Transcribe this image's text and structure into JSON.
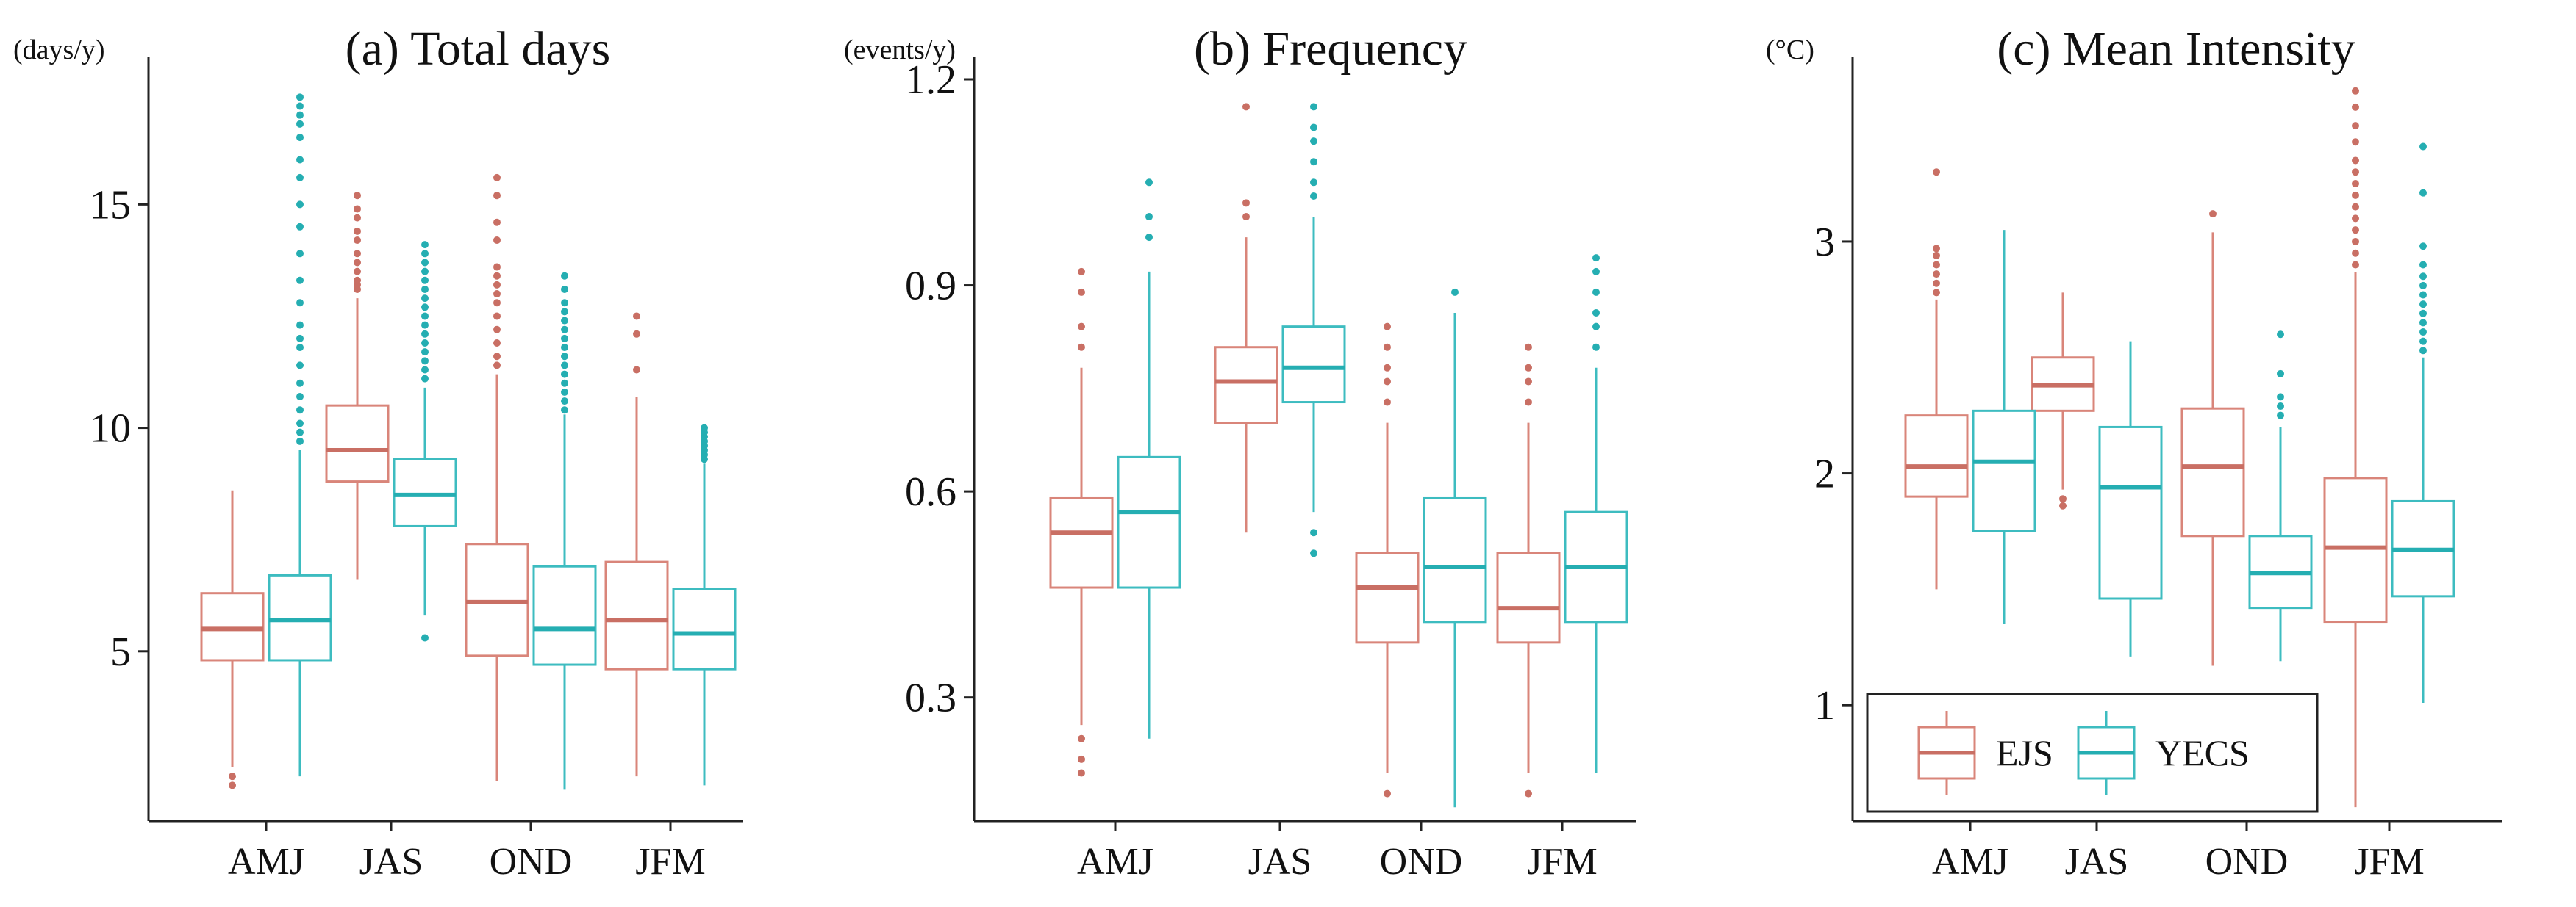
{
  "colors": {
    "ejs": "#d9857a",
    "yecs": "#3dbcc0",
    "ejs_median": "#c96f64",
    "yecs_median": "#25aeb2",
    "axis": "#222222"
  },
  "legend": {
    "entries": [
      "EJS",
      "YECS"
    ],
    "placement": "bottom-left inside panel c"
  },
  "chart_data": [
    {
      "type": "box",
      "title": "(a) Total days",
      "ylabel": "(days/y)",
      "xlabel": "",
      "categories": [
        "AMJ",
        "JAS",
        "OND",
        "JFM"
      ],
      "yticks": [
        5,
        10,
        15
      ],
      "ytick_labels": [
        "5",
        "10",
        "15"
      ],
      "ylim": [
        1.2,
        17.8
      ],
      "series": [
        {
          "name": "EJS",
          "boxes": [
            {
              "whisker_low": 2.4,
              "q1": 4.8,
              "median": 5.5,
              "q3": 6.3,
              "whisker_high": 8.6,
              "outliers": [
                2.0,
                2.2
              ]
            },
            {
              "whisker_low": 6.6,
              "q1": 8.8,
              "median": 9.5,
              "q3": 10.5,
              "whisker_high": 12.9,
              "outliers": [
                13.1,
                13.2,
                13.3,
                13.5,
                13.7,
                13.9,
                14.2,
                14.4,
                14.7,
                14.9,
                15.2
              ]
            },
            {
              "whisker_low": 2.1,
              "q1": 4.9,
              "median": 6.1,
              "q3": 7.4,
              "whisker_high": 11.2,
              "outliers": [
                11.4,
                11.6,
                11.9,
                12.2,
                12.5,
                12.8,
                13.0,
                13.2,
                13.4,
                13.6,
                14.2,
                14.6,
                15.2,
                15.6
              ]
            },
            {
              "whisker_low": 2.2,
              "q1": 4.6,
              "median": 5.7,
              "q3": 7.0,
              "whisker_high": 10.7,
              "outliers": [
                11.3,
                12.1,
                12.5
              ]
            }
          ]
        },
        {
          "name": "YECS",
          "boxes": [
            {
              "whisker_low": 2.2,
              "q1": 4.8,
              "median": 5.7,
              "q3": 6.7,
              "whisker_high": 9.5,
              "outliers": [
                9.7,
                9.9,
                10.1,
                10.4,
                10.7,
                11.0,
                11.4,
                11.8,
                12.0,
                12.3,
                12.8,
                13.3,
                13.9,
                14.5,
                15.0,
                15.6,
                16.0,
                16.5,
                16.8,
                17.0,
                17.2,
                17.4
              ]
            },
            {
              "whisker_low": 5.8,
              "q1": 7.8,
              "median": 8.5,
              "q3": 9.3,
              "whisker_high": 10.9,
              "outliers": [
                5.3,
                11.1,
                11.3,
                11.5,
                11.7,
                11.9,
                12.1,
                12.3,
                12.5,
                12.7,
                12.9,
                13.1,
                13.3,
                13.5,
                13.7,
                13.9,
                14.1
              ]
            },
            {
              "whisker_low": 1.9,
              "q1": 4.7,
              "median": 5.5,
              "q3": 6.9,
              "whisker_high": 10.3,
              "outliers": [
                10.4,
                10.6,
                10.8,
                11.0,
                11.2,
                11.4,
                11.6,
                11.8,
                12.0,
                12.2,
                12.4,
                12.6,
                12.8,
                13.1,
                13.4
              ]
            },
            {
              "whisker_low": 2.0,
              "q1": 4.6,
              "median": 5.4,
              "q3": 6.4,
              "whisker_high": 9.2,
              "outliers": [
                9.3,
                9.4,
                9.5,
                9.6,
                9.7,
                9.8,
                9.9,
                10.0
              ]
            }
          ]
        }
      ]
    },
    {
      "type": "box",
      "title": "(b) Frequency",
      "ylabel": "(events/y)",
      "xlabel": "",
      "categories": [
        "AMJ",
        "JAS",
        "OND",
        "JFM"
      ],
      "yticks": [
        0.3,
        0.6,
        0.9,
        1.2
      ],
      "ytick_labels": [
        "0.3",
        "0.6",
        "0.9",
        "1.2"
      ],
      "ylim": [
        0.12,
        1.2
      ],
      "series": [
        {
          "name": "EJS",
          "boxes": [
            {
              "whisker_low": 0.26,
              "q1": 0.46,
              "median": 0.54,
              "q3": 0.59,
              "whisker_high": 0.78,
              "outliers": [
                0.19,
                0.21,
                0.24,
                0.81,
                0.84,
                0.89,
                0.92
              ]
            },
            {
              "whisker_low": 0.54,
              "q1": 0.7,
              "median": 0.76,
              "q3": 0.81,
              "whisker_high": 0.97,
              "outliers": [
                1.0,
                1.02,
                1.16
              ]
            },
            {
              "whisker_low": 0.19,
              "q1": 0.38,
              "median": 0.46,
              "q3": 0.51,
              "whisker_high": 0.7,
              "outliers": [
                0.16,
                0.73,
                0.76,
                0.78,
                0.81,
                0.84
              ]
            },
            {
              "whisker_low": 0.19,
              "q1": 0.38,
              "median": 0.43,
              "q3": 0.51,
              "whisker_high": 0.7,
              "outliers": [
                0.16,
                0.73,
                0.76,
                0.78,
                0.81
              ]
            }
          ]
        },
        {
          "name": "YECS",
          "boxes": [
            {
              "whisker_low": 0.24,
              "q1": 0.46,
              "median": 0.57,
              "q3": 0.65,
              "whisker_high": 0.92,
              "outliers": [
                0.97,
                1.0,
                1.05
              ]
            },
            {
              "whisker_low": 0.57,
              "q1": 0.73,
              "median": 0.78,
              "q3": 0.84,
              "whisker_high": 1.0,
              "outliers": [
                0.51,
                0.54,
                1.03,
                1.05,
                1.08,
                1.11,
                1.13,
                1.16
              ]
            },
            {
              "whisker_low": 0.14,
              "q1": 0.41,
              "median": 0.49,
              "q3": 0.59,
              "whisker_high": 0.86,
              "outliers": [
                0.89
              ]
            },
            {
              "whisker_low": 0.19,
              "q1": 0.41,
              "median": 0.49,
              "q3": 0.57,
              "whisker_high": 0.78,
              "outliers": [
                0.81,
                0.84,
                0.86,
                0.89,
                0.92,
                0.94
              ]
            }
          ]
        }
      ]
    },
    {
      "type": "box",
      "title": "(c) Mean Intensity",
      "ylabel": "(°C)",
      "xlabel": "",
      "categories": [
        "AMJ",
        "JAS",
        "OND",
        "JFM"
      ],
      "yticks": [
        1,
        2,
        3
      ],
      "ytick_labels": [
        "1",
        "2",
        "3"
      ],
      "ylim": [
        0.5,
        3.7
      ],
      "series": [
        {
          "name": "EJS",
          "boxes": [
            {
              "whisker_low": 1.5,
              "q1": 1.9,
              "median": 2.03,
              "q3": 2.25,
              "whisker_high": 2.75,
              "outliers": [
                2.78,
                2.82,
                2.86,
                2.9,
                2.94,
                2.97,
                3.3
              ]
            },
            {
              "whisker_low": 1.93,
              "q1": 2.27,
              "median": 2.38,
              "q3": 2.5,
              "whisker_high": 2.78,
              "outliers": [
                1.86,
                1.89
              ]
            },
            {
              "whisker_low": 1.17,
              "q1": 1.73,
              "median": 2.03,
              "q3": 2.28,
              "whisker_high": 3.04,
              "outliers": [
                3.12
              ]
            },
            {
              "whisker_low": 0.56,
              "q1": 1.36,
              "median": 1.68,
              "q3": 1.98,
              "whisker_high": 2.87,
              "outliers": [
                2.9,
                2.95,
                3.0,
                3.05,
                3.1,
                3.15,
                3.2,
                3.25,
                3.3,
                3.35,
                3.43,
                3.5,
                3.58,
                3.65
              ]
            }
          ]
        },
        {
          "name": "YECS",
          "boxes": [
            {
              "whisker_low": 1.35,
              "q1": 1.75,
              "median": 2.05,
              "q3": 2.27,
              "whisker_high": 3.05,
              "outliers": []
            },
            {
              "whisker_low": 1.21,
              "q1": 1.46,
              "median": 1.94,
              "q3": 2.2,
              "whisker_high": 2.57,
              "outliers": []
            },
            {
              "whisker_low": 1.19,
              "q1": 1.42,
              "median": 1.57,
              "q3": 1.73,
              "whisker_high": 2.2,
              "outliers": [
                2.25,
                2.29,
                2.33,
                2.43,
                2.6
              ]
            },
            {
              "whisker_low": 1.01,
              "q1": 1.47,
              "median": 1.67,
              "q3": 1.88,
              "whisker_high": 2.5,
              "outliers": [
                2.53,
                2.57,
                2.61,
                2.65,
                2.69,
                2.73,
                2.77,
                2.81,
                2.85,
                2.9,
                2.98,
                3.21,
                3.41
              ]
            }
          ]
        }
      ]
    }
  ]
}
